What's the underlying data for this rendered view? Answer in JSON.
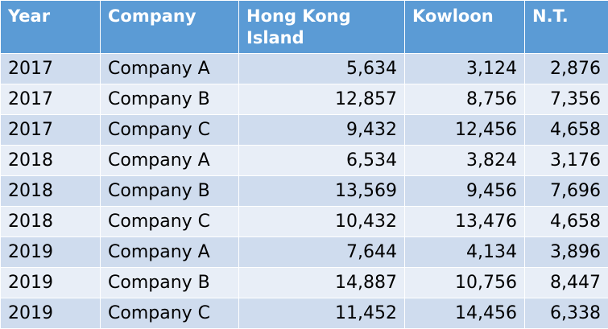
{
  "table": {
    "headers": [
      "Year",
      "Company",
      "Hong Kong Island",
      "Kowloon",
      "N.T."
    ],
    "rows": [
      [
        "2017",
        "Company A",
        "5,634",
        "3,124",
        "2,876"
      ],
      [
        "2017",
        "Company B",
        "12,857",
        "8,756",
        "7,356"
      ],
      [
        "2017",
        "Company C",
        "9,432",
        "12,456",
        "4,658"
      ],
      [
        "2018",
        "Company A",
        "6,534",
        "3,824",
        "3,176"
      ],
      [
        "2018",
        "Company B",
        "13,569",
        "9,456",
        "7,696"
      ],
      [
        "2018",
        "Company C",
        "10,432",
        "13,476",
        "4,658"
      ],
      [
        "2019",
        "Company A",
        "7,644",
        "4,134",
        "3,896"
      ],
      [
        "2019",
        "Company B",
        "14,887",
        "10,756",
        "8,447"
      ],
      [
        "2019",
        "Company C",
        "11,452",
        "14,456",
        "6,338"
      ]
    ]
  },
  "colors": {
    "header_bg": "#5b9bd5",
    "row_band_dark": "#cfdcee",
    "row_band_light": "#e8eef7"
  }
}
